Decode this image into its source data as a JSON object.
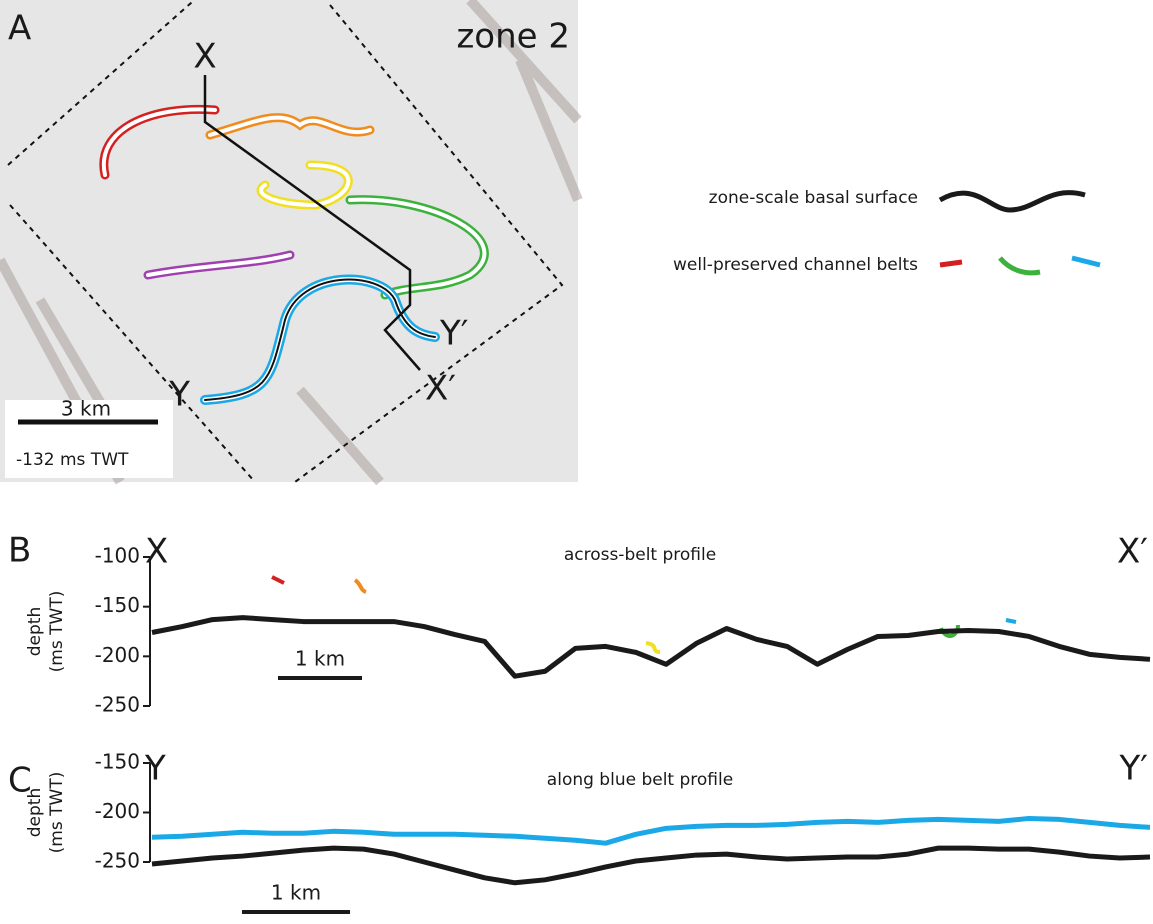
{
  "panel_a": {
    "letter": "A",
    "zone": "zone 2",
    "x_start": "X",
    "x_end": "X′",
    "y_start": "Y",
    "y_end": "Y′",
    "scale": "3 km",
    "depth": "-132 ms TWT"
  },
  "legend": {
    "basal": "zone-scale basal surface",
    "belts": "well-preserved channel belts"
  },
  "chart_data": [
    {
      "type": "line",
      "letter": "B",
      "title": "across-belt profile",
      "start": "X",
      "end": "X′",
      "ylabel": [
        "depth",
        "(ms TWT)"
      ],
      "scale": "1 km",
      "ylim": [
        -250,
        -100
      ],
      "yticks": [
        -100,
        -150,
        -200,
        -250
      ],
      "series": [
        {
          "color": "#1a1a1a",
          "values": [
            -176,
            -170,
            -163,
            -161,
            -163,
            -165,
            -165,
            -165,
            -165,
            -170,
            -178,
            -185,
            -220,
            -215,
            -192,
            -190,
            -196,
            -208,
            -187,
            -172,
            -183,
            -190,
            -208,
            -193,
            -180,
            -179,
            -175,
            -174,
            -175,
            -180,
            -190,
            -198,
            -201,
            -203
          ]
        }
      ]
    },
    {
      "type": "line",
      "letter": "C",
      "title": "along blue belt profile",
      "start": "Y",
      "end": "Y′",
      "ylabel": [
        "depth",
        "(ms TWT)"
      ],
      "scale": "1 km",
      "ylim": [
        -250,
        -150
      ],
      "yticks": [
        -150,
        -200,
        -250
      ],
      "series": [
        {
          "color": "#1ba8e6",
          "values": [
            -225,
            -224,
            -222,
            -220,
            -221,
            -221,
            -219,
            -220,
            -222,
            -222,
            -222,
            -223,
            -224,
            -226,
            -228,
            -231,
            -222,
            -216,
            -214,
            -213,
            -213,
            -212,
            -210,
            -209,
            -210,
            -208,
            -207,
            -208,
            -209,
            -206,
            -207,
            -210,
            -213,
            -215
          ]
        },
        {
          "color": "#1a1a1a",
          "values": [
            -252,
            -249,
            -246,
            -244,
            -241,
            -238,
            -236,
            -237,
            -242,
            -250,
            -258,
            -266,
            -271,
            -268,
            -262,
            -255,
            -249,
            -246,
            -243,
            -242,
            -245,
            -247,
            -246,
            -245,
            -245,
            -242,
            -236,
            -236,
            -237,
            -237,
            -240,
            -244,
            -246,
            -245
          ]
        }
      ]
    }
  ]
}
